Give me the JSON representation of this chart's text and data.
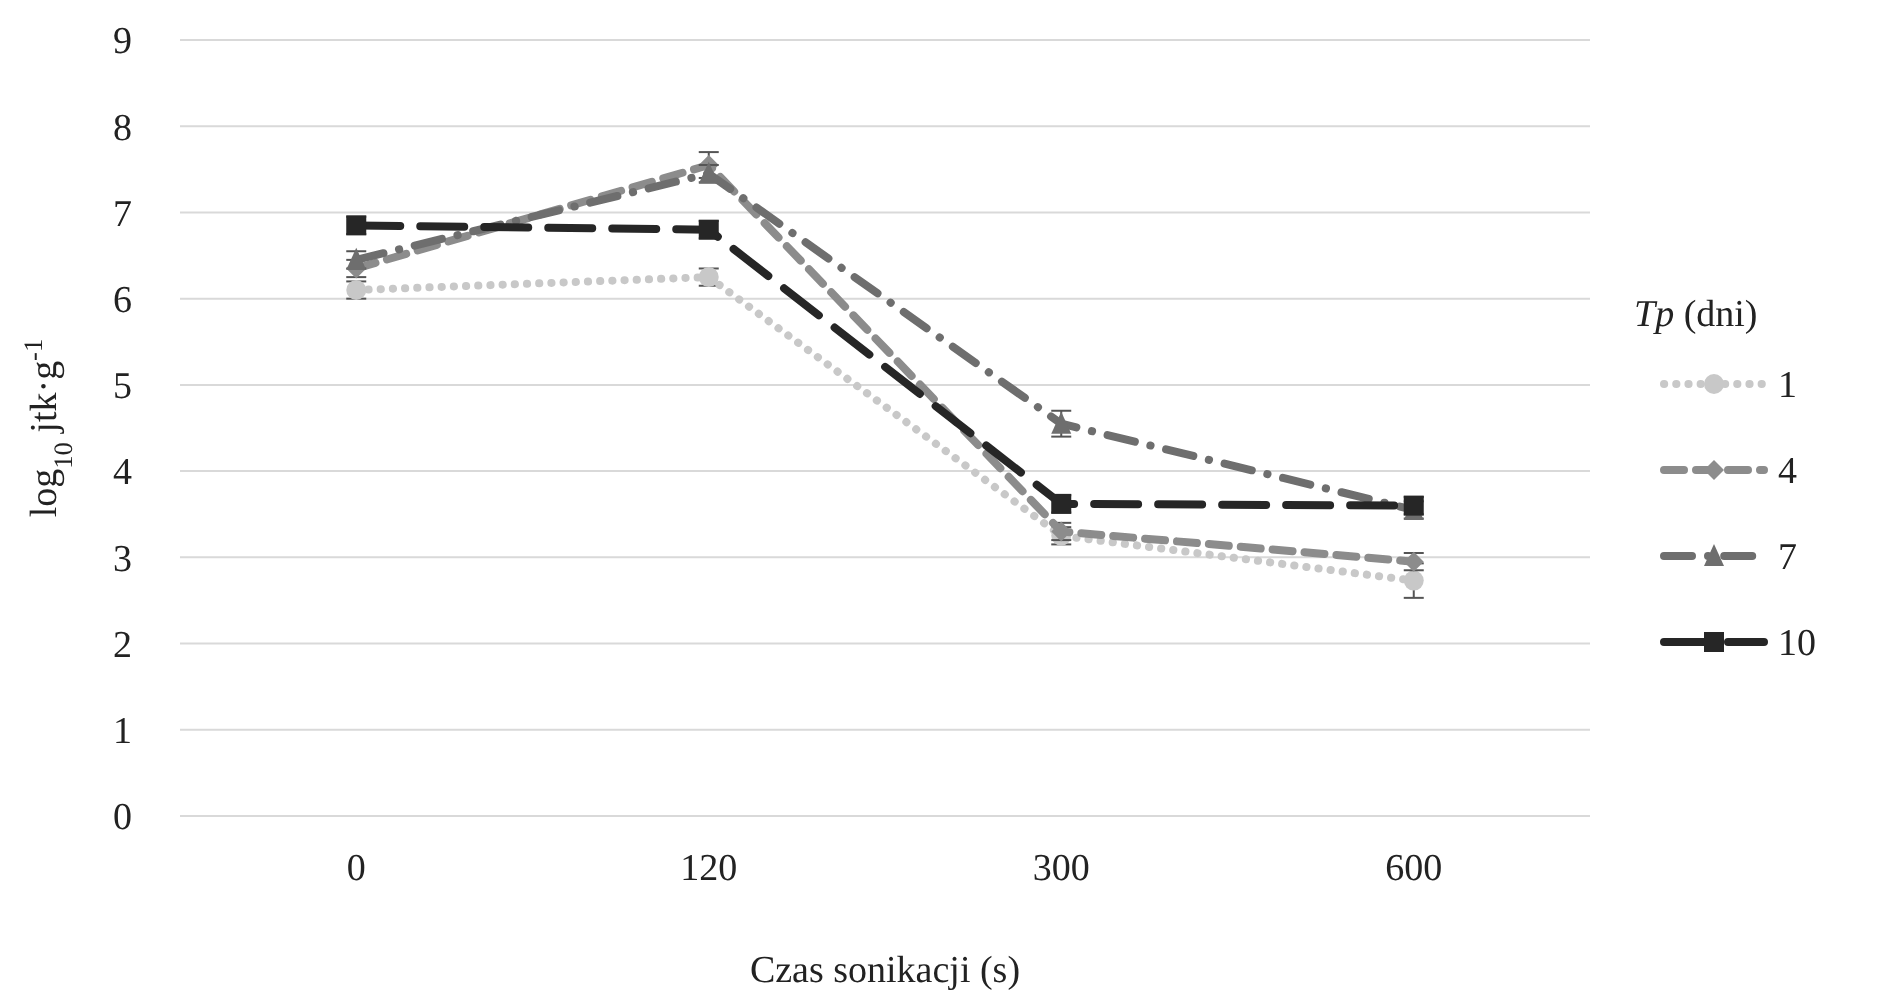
{
  "chart_data": {
    "type": "line",
    "xlabel": "Czas sonikacji (s)",
    "ylabel": "log$_{10}$ jtk·g$^{-1}$",
    "legend_title": "Tp (dni)",
    "categories": [
      "0",
      "120",
      "300",
      "600"
    ],
    "ylim": [
      0,
      9
    ],
    "yticks": [
      0,
      1,
      2,
      3,
      4,
      5,
      6,
      7,
      8,
      9
    ],
    "grid": "y",
    "legend": "right",
    "series": [
      {
        "name": "1",
        "color": "#c8c8c8",
        "line_style": "dotted",
        "marker": "circle",
        "values": [
          6.1,
          6.25,
          3.25,
          2.73
        ],
        "errors": [
          0.1,
          0.1,
          0.1,
          0.2
        ]
      },
      {
        "name": "4",
        "color": "#8c8c8c",
        "line_style": "dashed",
        "marker": "diamond",
        "values": [
          6.35,
          7.55,
          3.3,
          2.95
        ],
        "errors": [
          0.1,
          0.15,
          0.1,
          0.1
        ]
      },
      {
        "name": "7",
        "color": "#6e6e6e",
        "line_style": "dashed",
        "marker": "triangle",
        "values": [
          6.45,
          7.45,
          4.55,
          3.55
        ],
        "errors": [
          0.1,
          0.1,
          0.15,
          0.1
        ]
      },
      {
        "name": "10",
        "color": "#262626",
        "line_style": "dashed",
        "marker": "square",
        "values": [
          6.85,
          6.8,
          3.62,
          3.6
        ],
        "errors": [
          0.1,
          0.1,
          0.1,
          0.1
        ]
      }
    ]
  }
}
